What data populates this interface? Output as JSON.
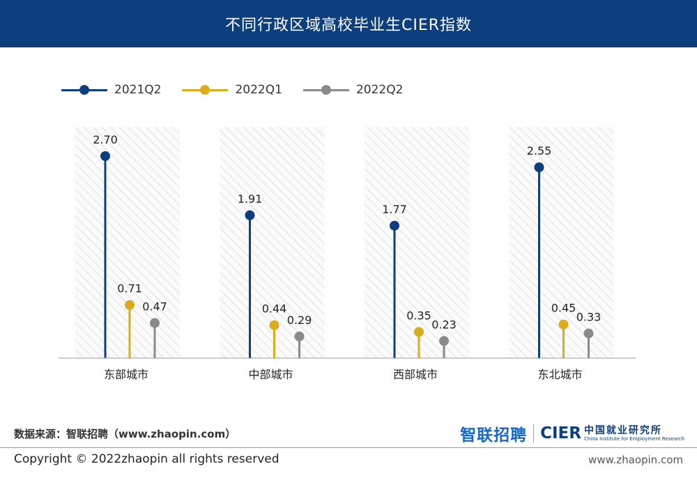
{
  "header": {
    "title": "不同行政区域高校毕业生CIER指数"
  },
  "chart_data": {
    "type": "lollipop",
    "categories": [
      "东部城市",
      "中部城市",
      "西部城市",
      "东北城市"
    ],
    "series": [
      {
        "name": "2021Q2",
        "color": "#0d3f7f",
        "values": [
          2.7,
          1.91,
          1.77,
          2.55
        ],
        "labels": [
          "2.70",
          "1.91",
          "1.77",
          "2.55"
        ]
      },
      {
        "name": "2022Q1",
        "color": "#d9ad1d",
        "values": [
          0.71,
          0.44,
          0.35,
          0.45
        ],
        "labels": [
          "0.71",
          "0.44",
          "0.35",
          "0.45"
        ]
      },
      {
        "name": "2022Q2",
        "color": "#8a8a8a",
        "values": [
          0.47,
          0.29,
          0.23,
          0.33
        ],
        "labels": [
          "0.47",
          "0.29",
          "0.23",
          "0.33"
        ]
      }
    ],
    "ylim": [
      0,
      3.0
    ],
    "legend": "top-left",
    "grid": false,
    "background_bands": true
  },
  "footer": {
    "source": "数据来源：智联招聘（www.zhaopin.com）",
    "logo_zhaopin": "智联招聘",
    "logo_cier": "CIER",
    "logo_cier_cn": "中国就业研究所",
    "logo_cier_en": "China Institute for Employment Research",
    "copyright": "Copyright ©  2022zhaopin all rights reserved",
    "website": "www.zhaopin.com"
  }
}
